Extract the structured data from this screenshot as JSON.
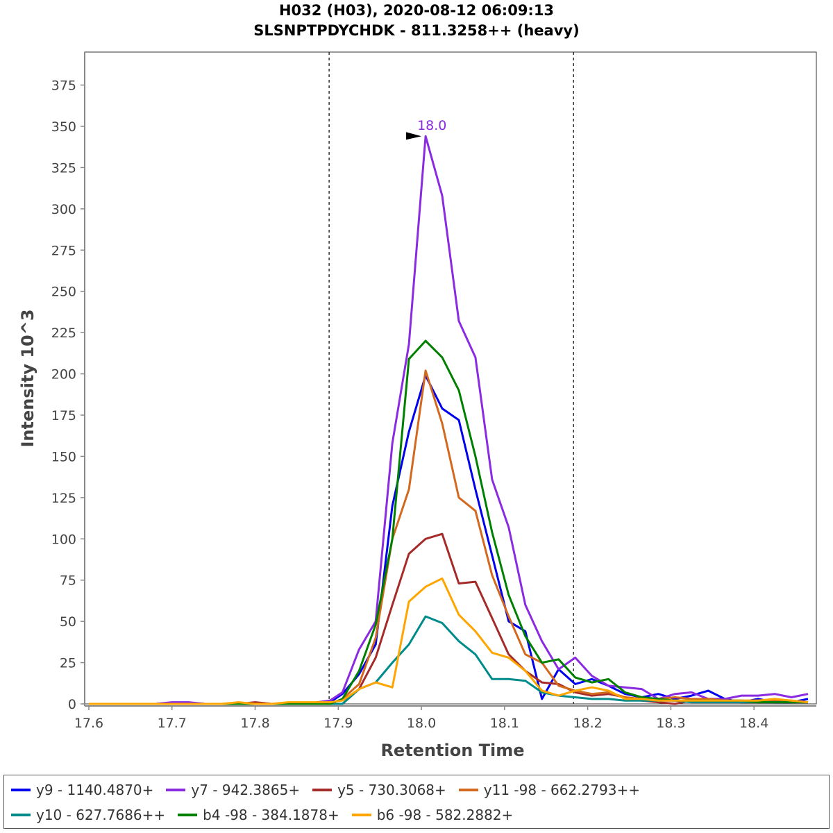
{
  "chart_data": {
    "type": "line",
    "title": "H032 (H03), 2020-08-12 06:09:13",
    "subtitle": "SLSNPTPDYCHDK - 811.3258++ (heavy)",
    "xlabel": "Retention Time",
    "ylabel": "Intensity 10^3",
    "xlim": [
      17.595,
      18.475
    ],
    "ylim": [
      0,
      395
    ],
    "xticks": [
      17.6,
      17.7,
      17.8,
      17.9,
      18.0,
      18.1,
      18.2,
      18.3,
      18.4
    ],
    "xtick_labels": [
      "17.6",
      "17.7",
      "17.8",
      "17.9",
      "18.0",
      "18.1",
      "18.2",
      "18.3",
      "18.4"
    ],
    "yticks": [
      0,
      25,
      50,
      75,
      100,
      125,
      150,
      175,
      200,
      225,
      250,
      275,
      300,
      325,
      350,
      375
    ],
    "ytick_labels": [
      "0",
      "25",
      "50",
      "75",
      "100",
      "125",
      "150",
      "175",
      "200",
      "225",
      "250",
      "275",
      "300",
      "325",
      "350",
      "375"
    ],
    "boundaries": [
      17.889,
      18.183
    ],
    "peak_annotation": {
      "label": "18.0",
      "x": 18.005,
      "y": 344,
      "color": "#8a2be2"
    },
    "grid": false,
    "legend_position": "bottom",
    "x": [
      17.6,
      17.62,
      17.64,
      17.66,
      17.68,
      17.7,
      17.72,
      17.74,
      17.76,
      17.78,
      17.8,
      17.82,
      17.84,
      17.86,
      17.875,
      17.89,
      17.905,
      17.925,
      17.945,
      17.965,
      17.985,
      18.005,
      18.025,
      18.045,
      18.065,
      18.085,
      18.105,
      18.125,
      18.145,
      18.165,
      18.185,
      18.205,
      18.225,
      18.245,
      18.265,
      18.285,
      18.305,
      18.325,
      18.345,
      18.365,
      18.385,
      18.405,
      18.425,
      18.445,
      18.465
    ],
    "series": [
      {
        "name": "y9 - 1140.4870+",
        "color": "#0000ee",
        "values": [
          0,
          0,
          0,
          0,
          0,
          0,
          0,
          0,
          0,
          0,
          0,
          0,
          0,
          0,
          1,
          1,
          6,
          18,
          36,
          120,
          165,
          199,
          179,
          172,
          130,
          90,
          50,
          44,
          3,
          21,
          12,
          15,
          11,
          6,
          4,
          6,
          3,
          5,
          8,
          3,
          1,
          3,
          1,
          1,
          3
        ]
      },
      {
        "name": "y7 - 942.3865+",
        "color": "#8a2be2",
        "values": [
          0,
          0,
          0,
          0,
          0,
          1,
          1,
          0,
          0,
          0,
          0,
          0,
          0,
          0,
          1,
          2,
          7,
          33,
          50,
          158,
          218,
          344,
          308,
          232,
          210,
          136,
          107,
          60,
          38,
          21,
          28,
          17,
          11,
          10,
          9,
          3,
          6,
          7,
          3,
          3,
          5,
          5,
          6,
          4,
          6
        ]
      },
      {
        "name": "y5 - 730.3068+",
        "color": "#a52a2a",
        "values": [
          0,
          0,
          0,
          0,
          0,
          0,
          0,
          0,
          0,
          0,
          1,
          0,
          0,
          0,
          0,
          0,
          0,
          9,
          28,
          60,
          91,
          100,
          103,
          73,
          74,
          52,
          30,
          20,
          13,
          12,
          7,
          5,
          6,
          4,
          2,
          1,
          0,
          2,
          3,
          2,
          1,
          1,
          1,
          1,
          1
        ]
      },
      {
        "name": "y11 -98 - 662.2793++",
        "color": "#d2691e",
        "values": [
          0,
          0,
          0,
          0,
          0,
          0,
          0,
          0,
          0,
          0,
          0,
          0,
          0,
          0,
          0,
          0,
          3,
          12,
          40,
          100,
          130,
          202,
          170,
          125,
          117,
          78,
          53,
          30,
          25,
          11,
          8,
          6,
          7,
          4,
          3,
          3,
          4,
          3,
          3,
          2,
          2,
          2,
          2,
          2,
          1
        ]
      },
      {
        "name": "y10 - 627.7686++",
        "color": "#008b8b",
        "values": [
          0,
          0,
          0,
          0,
          0,
          0,
          0,
          0,
          0,
          0,
          0,
          0,
          0,
          0,
          0,
          0,
          0,
          9,
          13,
          25,
          36,
          53,
          49,
          38,
          30,
          15,
          15,
          14,
          7,
          5,
          4,
          3,
          3,
          2,
          2,
          2,
          2,
          1,
          1,
          1,
          1,
          1,
          1,
          1,
          1
        ]
      },
      {
        "name": "b4 -98 - 384.1878+",
        "color": "#008000",
        "values": [
          0,
          0,
          0,
          0,
          0,
          0,
          0,
          0,
          0,
          0,
          0,
          0,
          0,
          0,
          0,
          0,
          3,
          20,
          48,
          100,
          209,
          220,
          210,
          190,
          150,
          104,
          66,
          41,
          25,
          27,
          16,
          13,
          15,
          7,
          4,
          3,
          2,
          2,
          2,
          2,
          2,
          1,
          1,
          1,
          1
        ]
      },
      {
        "name": "b6 -98 - 582.2882+",
        "color": "#ffa500",
        "values": [
          0,
          0,
          0,
          0,
          0,
          0,
          0,
          0,
          0,
          1,
          0,
          0,
          1,
          1,
          1,
          1,
          2,
          9,
          13,
          10,
          62,
          71,
          76,
          54,
          44,
          31,
          28,
          20,
          8,
          5,
          8,
          10,
          8,
          3,
          3,
          2,
          2,
          2,
          2,
          2,
          2,
          2,
          3,
          2,
          1
        ]
      }
    ]
  }
}
